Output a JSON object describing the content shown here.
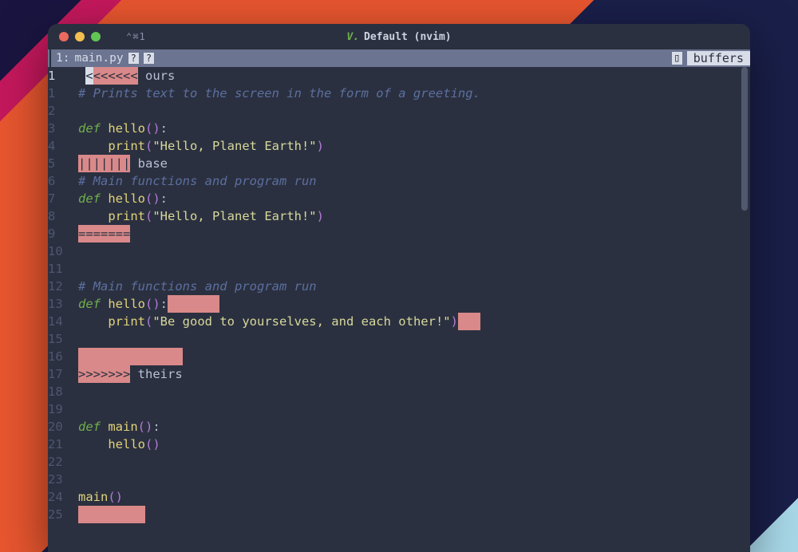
{
  "colors": {
    "window_bg": "#2b3040",
    "tabline_bg": "#6b7490",
    "tabline_fg": "#d8dde8",
    "gutter_fg": "#4e5670",
    "gutter_active_fg": "#cdd3e0",
    "text_fg": "#b8c0d4",
    "comment_fg": "#5b6f9e",
    "keyword_fg": "#6fb04b",
    "function_fg": "#e0d37a",
    "paren_fg": "#b27bd6",
    "string_fg": "#d6d89a",
    "diff_err_bg": "#d98989",
    "diff_err_fg": "#2b3040",
    "traffic_close": "#ec6a5f",
    "traffic_min": "#f4bf4f",
    "traffic_max": "#61c554"
  },
  "titlebar": {
    "tab_indicator": "⌃⌘1",
    "logo": "V.",
    "title": "Default (nvim)"
  },
  "tabline": {
    "index": "1:",
    "filename": "main.py",
    "badge1": "?",
    "badge2": "?",
    "right_icon": "▯",
    "right_label": "buffers"
  },
  "lines": [
    {
      "n": "1",
      "active": true,
      "segs": [
        {
          "t": " "
        },
        {
          "t": "<",
          "cls": "cursor"
        },
        {
          "t": "<<<<<<",
          "cls": "hl-err"
        },
        {
          "t": " ours"
        }
      ]
    },
    {
      "n": "1",
      "segs": [
        {
          "t": "# Prints text to the screen in the form of a greeting.",
          "cls": "comment"
        }
      ]
    },
    {
      "n": "2",
      "segs": []
    },
    {
      "n": "3",
      "segs": [
        {
          "t": "def ",
          "cls": "kw"
        },
        {
          "t": "hello",
          "cls": "fn"
        },
        {
          "t": "()",
          "cls": "paren"
        },
        {
          "t": ":"
        }
      ]
    },
    {
      "n": "4",
      "segs": [
        {
          "t": "    "
        },
        {
          "t": "print",
          "cls": "fn"
        },
        {
          "t": "(",
          "cls": "paren"
        },
        {
          "t": "\"Hello, Planet Earth!\"",
          "cls": "str"
        },
        {
          "t": ")",
          "cls": "paren"
        }
      ]
    },
    {
      "n": "5",
      "segs": [
        {
          "t": "|||||||",
          "cls": "hl-err"
        },
        {
          "t": " base"
        }
      ]
    },
    {
      "n": "6",
      "segs": [
        {
          "t": "# Main functions and program run",
          "cls": "comment"
        }
      ]
    },
    {
      "n": "7",
      "segs": [
        {
          "t": "def ",
          "cls": "kw"
        },
        {
          "t": "hello",
          "cls": "fn"
        },
        {
          "t": "()",
          "cls": "paren"
        },
        {
          "t": ":"
        }
      ]
    },
    {
      "n": "8",
      "segs": [
        {
          "t": "    "
        },
        {
          "t": "print",
          "cls": "fn"
        },
        {
          "t": "(",
          "cls": "paren"
        },
        {
          "t": "\"Hello, Planet Earth!\"",
          "cls": "str"
        },
        {
          "t": ")",
          "cls": "paren"
        }
      ]
    },
    {
      "n": "9",
      "segs": [
        {
          "t": "=======",
          "cls": "hl-err"
        }
      ]
    },
    {
      "n": "10",
      "segs": []
    },
    {
      "n": "11",
      "segs": []
    },
    {
      "n": "12",
      "segs": [
        {
          "t": "# Main functions and program run",
          "cls": "comment"
        }
      ]
    },
    {
      "n": "13",
      "segs": [
        {
          "t": "def ",
          "cls": "kw"
        },
        {
          "t": "hello",
          "cls": "fn"
        },
        {
          "t": "()",
          "cls": "paren"
        },
        {
          "t": ":"
        },
        {
          "t": "       ",
          "cls": "hl-err"
        }
      ]
    },
    {
      "n": "14",
      "segs": [
        {
          "t": "    "
        },
        {
          "t": "print",
          "cls": "fn"
        },
        {
          "t": "(",
          "cls": "paren"
        },
        {
          "t": "\"Be good to yourselves, and each other!\"",
          "cls": "str"
        },
        {
          "t": ")",
          "cls": "paren"
        },
        {
          "t": "   ",
          "cls": "hl-err"
        }
      ]
    },
    {
      "n": "15",
      "segs": []
    },
    {
      "n": "16",
      "segs": [
        {
          "t": "              ",
          "cls": "hl-err"
        }
      ]
    },
    {
      "n": "17",
      "segs": [
        {
          "t": ">>>>>>>",
          "cls": "hl-err"
        },
        {
          "t": " theirs"
        }
      ]
    },
    {
      "n": "18",
      "segs": []
    },
    {
      "n": "19",
      "segs": []
    },
    {
      "n": "20",
      "segs": [
        {
          "t": "def ",
          "cls": "kw"
        },
        {
          "t": "main",
          "cls": "fn"
        },
        {
          "t": "()",
          "cls": "paren"
        },
        {
          "t": ":"
        }
      ]
    },
    {
      "n": "21",
      "segs": [
        {
          "t": "    "
        },
        {
          "t": "hello",
          "cls": "fn"
        },
        {
          "t": "()",
          "cls": "paren"
        }
      ]
    },
    {
      "n": "22",
      "segs": []
    },
    {
      "n": "23",
      "segs": []
    },
    {
      "n": "24",
      "segs": [
        {
          "t": "main",
          "cls": "fn"
        },
        {
          "t": "()",
          "cls": "paren"
        }
      ]
    },
    {
      "n": "25",
      "segs": [
        {
          "t": "         ",
          "cls": "hl-err"
        }
      ]
    }
  ]
}
